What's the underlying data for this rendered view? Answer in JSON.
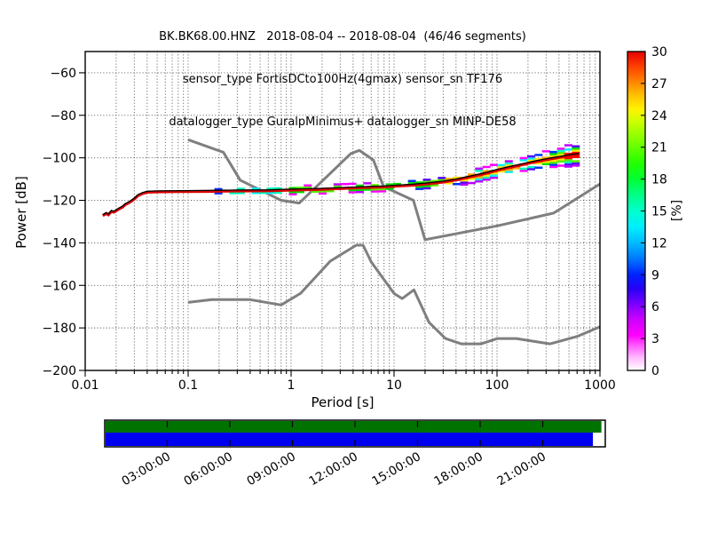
{
  "titles": {
    "line1": "BK.BK68.00.HNZ   2018-08-04 -- 2018-08-04  (46/46 segments)",
    "line2": "sensor_type FortisDCto100Hz(4gmax) sensor_sn TF176",
    "line3": "datalogger_type GuralpMinimus+ datalogger_sn MINP-DE58"
  },
  "chart_data": {
    "type": "heatmap",
    "description": "Probabilistic power spectral density (PPSD) with Peterson noise model reference curves",
    "xlabel": "Period [s]",
    "ylabel": "Power [dB]",
    "xscale": "log",
    "xlim": [
      0.01,
      1000
    ],
    "ylim": [
      -200,
      -50
    ],
    "grid": "dotted",
    "xticks": {
      "values": [
        0.01,
        0.1,
        1,
        10,
        100,
        1000
      ],
      "labels": [
        "0.01",
        "0.1",
        "1",
        "10",
        "100",
        "1000"
      ]
    },
    "yticks": {
      "values": [
        -60,
        -80,
        -100,
        -120,
        -140,
        -160,
        -180,
        -200
      ],
      "labels": [
        "−60",
        "−80",
        "−100",
        "−120",
        "−140",
        "−160",
        "−180",
        "−200"
      ]
    },
    "colorbar": {
      "label": "[%]",
      "lim": [
        0,
        30
      ],
      "ticks": [
        30,
        27,
        24,
        21,
        18,
        15,
        12,
        9,
        6,
        3,
        0
      ],
      "stops": [
        [
          0.0,
          "#ffffff"
        ],
        [
          0.04,
          "#ffbbff"
        ],
        [
          0.08,
          "#ff55ff"
        ],
        [
          0.11,
          "#ff00ff"
        ],
        [
          0.16,
          "#cc00ff"
        ],
        [
          0.21,
          "#7700ff"
        ],
        [
          0.255,
          "#2a00f5"
        ],
        [
          0.3,
          "#0022ff"
        ],
        [
          0.35,
          "#0077ff"
        ],
        [
          0.4,
          "#00bbff"
        ],
        [
          0.45,
          "#00eeff"
        ],
        [
          0.5,
          "#00ffcc"
        ],
        [
          0.55,
          "#00ff88"
        ],
        [
          0.6,
          "#00ff33"
        ],
        [
          0.65,
          "#22ff00"
        ],
        [
          0.72,
          "#7fff00"
        ],
        [
          0.78,
          "#ccff00"
        ],
        [
          0.82,
          "#fff200"
        ],
        [
          0.86,
          "#ffc400"
        ],
        [
          0.9,
          "#ff8c00"
        ],
        [
          0.95,
          "#ff4400"
        ],
        [
          1.0,
          "#e60000"
        ]
      ]
    },
    "noise_models": {
      "color": "#7f7f7f",
      "nhnm": [
        [
          0.1,
          -91.5
        ],
        [
          0.22,
          -97.4
        ],
        [
          0.32,
          -110.5
        ],
        [
          0.8,
          -120.0
        ],
        [
          1.2,
          -121.3
        ],
        [
          3.8,
          -98.0
        ],
        [
          4.6,
          -96.5
        ],
        [
          6.3,
          -101.0
        ],
        [
          7.9,
          -113.5
        ],
        [
          15.4,
          -120.0
        ],
        [
          20,
          -138.5
        ],
        [
          100,
          -132.0
        ],
        [
          354.8,
          -126.0
        ],
        [
          1000,
          -112.3
        ]
      ],
      "nlnm": [
        [
          0.1,
          -168.0
        ],
        [
          0.17,
          -166.7
        ],
        [
          0.4,
          -166.7
        ],
        [
          0.8,
          -169.2
        ],
        [
          1.24,
          -163.7
        ],
        [
          2.4,
          -148.6
        ],
        [
          4.3,
          -141.1
        ],
        [
          5.0,
          -141.1
        ],
        [
          6.0,
          -149.0
        ],
        [
          10.0,
          -163.8
        ],
        [
          12.0,
          -166.2
        ],
        [
          15.6,
          -162.1
        ],
        [
          21.9,
          -177.5
        ],
        [
          31.6,
          -185.0
        ],
        [
          45,
          -187.5
        ],
        [
          70,
          -187.5
        ],
        [
          101,
          -185.0
        ],
        [
          154,
          -185.0
        ],
        [
          328,
          -187.5
        ],
        [
          600,
          -184.0
        ],
        [
          1000,
          -179.5
        ]
      ]
    },
    "psd_mode": [
      [
        0.0148,
        -127.2
      ],
      [
        0.016,
        -126.2
      ],
      [
        0.0168,
        -126.8
      ],
      [
        0.018,
        -125.2
      ],
      [
        0.019,
        -125.6
      ],
      [
        0.021,
        -124.2
      ],
      [
        0.023,
        -123.2
      ],
      [
        0.0245,
        -122.0
      ],
      [
        0.026,
        -121.4
      ],
      [
        0.028,
        -120.4
      ],
      [
        0.03,
        -119.4
      ],
      [
        0.0325,
        -117.8
      ],
      [
        0.036,
        -116.8
      ],
      [
        0.04,
        -116.2
      ],
      [
        0.05,
        -116.0
      ],
      [
        0.08,
        -115.9
      ],
      [
        0.15,
        -115.8
      ],
      [
        0.3,
        -115.6
      ],
      [
        0.6,
        -115.5
      ],
      [
        1.0,
        -115.2
      ],
      [
        2,
        -114.8
      ],
      [
        4,
        -114.2
      ],
      [
        6,
        -113.9
      ],
      [
        8,
        -113.7
      ],
      [
        10,
        -113.4
      ],
      [
        15,
        -112.9
      ],
      [
        20,
        -112.4
      ],
      [
        30,
        -111.4
      ],
      [
        40,
        -110.4
      ],
      [
        50,
        -109.4
      ],
      [
        65,
        -108.2
      ],
      [
        80,
        -107.2
      ],
      [
        100,
        -105.9
      ],
      [
        130,
        -104.6
      ],
      [
        170,
        -103.4
      ],
      [
        220,
        -102.2
      ],
      [
        280,
        -101.2
      ],
      [
        350,
        -100.3
      ],
      [
        430,
        -99.6
      ],
      [
        520,
        -98.9
      ],
      [
        630,
        -98.4
      ]
    ],
    "psd_spread": [
      [
        0.0148,
        0
      ],
      [
        0.038,
        0
      ],
      [
        0.042,
        0.6
      ],
      [
        0.17,
        0.6
      ],
      [
        0.2,
        1.5
      ],
      [
        0.9,
        1.7
      ],
      [
        1,
        1.9
      ],
      [
        8,
        2.2
      ],
      [
        20,
        2.5
      ],
      [
        60,
        2.8
      ],
      [
        120,
        3.2
      ],
      [
        250,
        3.6
      ],
      [
        380,
        4.2
      ],
      [
        480,
        5.2
      ],
      [
        630,
        5.6
      ]
    ],
    "band_palette": [
      {
        "t": 0.2,
        "colors": [
          "#ff0000"
        ]
      },
      {
        "t": 0.38,
        "colors": [
          "#ffe600",
          "#ffaa00"
        ]
      },
      {
        "t": 0.55,
        "colors": [
          "#00dd00",
          "#55ee00"
        ]
      },
      {
        "t": 0.72,
        "colors": [
          "#00eeff",
          "#00ffbb"
        ]
      },
      {
        "t": 0.87,
        "colors": [
          "#0033ff",
          "#5500ff"
        ]
      },
      {
        "t": 1.01,
        "colors": [
          "#ff00ff",
          "#bb00ff"
        ]
      }
    ],
    "mode_line_colors": {
      "line": "#dd0000",
      "overlay": "#000000"
    }
  },
  "timeline": {
    "tick_labels": [
      "03:00:00",
      "06:00:00",
      "09:00:00",
      "12:00:00",
      "15:00:00",
      "18:00:00",
      "21:00:00"
    ],
    "tick_hours": [
      3,
      6,
      9,
      12,
      15,
      18,
      21
    ],
    "total_hours": 24,
    "green_fraction": 0.994,
    "blue_fraction": 0.977,
    "green_color": "#007200",
    "blue_color": "#0000f0"
  }
}
